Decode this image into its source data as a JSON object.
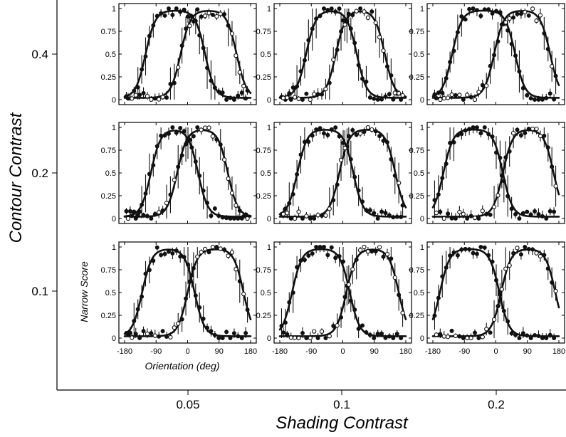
{
  "chart_data": {
    "type": "line",
    "layout": "3x3 grid of small multiples",
    "xlabel": "Shading Contrast",
    "ylabel": "Contour Contrast",
    "x_categories": [
      "0.05",
      "0.1",
      "0.2"
    ],
    "y_categories": [
      "0.4",
      "0.2",
      "0.1"
    ],
    "panel_xlabel": "Orientation (deg)",
    "panel_ylabel": "Narrow Score",
    "panel_xticks": [
      "-180",
      "-90",
      "0",
      "90",
      "180"
    ],
    "panel_xlim": [
      -180,
      180
    ],
    "panel_yticks": [
      "0",
      "0.25",
      "0.5",
      "0.75",
      "1"
    ],
    "panel_ylim": [
      0,
      1
    ],
    "panels": [
      {
        "contour": "0.4",
        "shading": "0.05",
        "rise_a": -120,
        "fall_a": 50,
        "rise_b": -20,
        "fall_b": 140
      },
      {
        "contour": "0.4",
        "shading": "0.1",
        "rise_a": -105,
        "fall_a": 40,
        "rise_b": -20,
        "fall_b": 120
      },
      {
        "contour": "0.4",
        "shading": "0.2",
        "rise_a": -125,
        "fall_a": 55,
        "rise_b": -5,
        "fall_b": 155
      },
      {
        "contour": "0.2",
        "shading": "0.05",
        "rise_a": -105,
        "fall_a": 30,
        "rise_b": -30,
        "fall_b": 115
      },
      {
        "contour": "0.2",
        "shading": "0.1",
        "rise_a": -130,
        "fall_a": 30,
        "rise_b": -10,
        "fall_b": 150
      },
      {
        "contour": "0.2",
        "shading": "0.2",
        "rise_a": -150,
        "fall_a": 20,
        "rise_b": 20,
        "fall_b": 165
      },
      {
        "contour": "0.1",
        "shading": "0.05",
        "rise_a": -130,
        "fall_a": 20,
        "rise_b": 0,
        "fall_b": 160
      },
      {
        "contour": "0.1",
        "shading": "0.1",
        "rise_a": -145,
        "fall_a": 20,
        "rise_b": 10,
        "fall_b": 160
      },
      {
        "contour": "0.1",
        "shading": "0.2",
        "rise_a": -160,
        "fall_a": 10,
        "rise_b": 15,
        "fall_b": 170
      }
    ]
  }
}
